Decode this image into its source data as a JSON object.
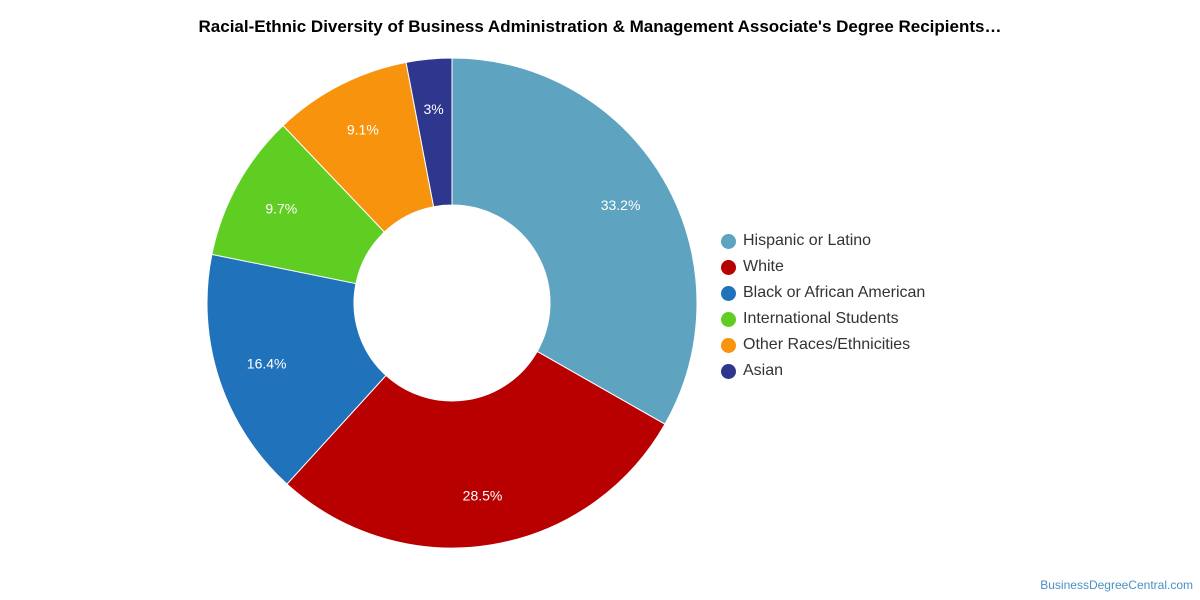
{
  "chart_data": {
    "type": "pie",
    "title": "Racial-Ethnic Diversity of Business Administration & Management Associate's Degree Recipients…",
    "categories": [
      "Hispanic or Latino",
      "White",
      "Black or African American",
      "International Students",
      "Other Races/Ethnicities",
      "Asian"
    ],
    "values": [
      33.2,
      28.5,
      16.4,
      9.7,
      9.1,
      3
    ],
    "labels": [
      "33.2%",
      "28.5%",
      "16.4%",
      "9.7%",
      "9.1%",
      "3%"
    ],
    "colors": [
      "#5ea3c0",
      "#b80000",
      "#2073bb",
      "#60cd23",
      "#f7930d",
      "#2e368e"
    ],
    "donut": true,
    "legend_position": "right"
  },
  "source": "BusinessDegreeCentral.com"
}
